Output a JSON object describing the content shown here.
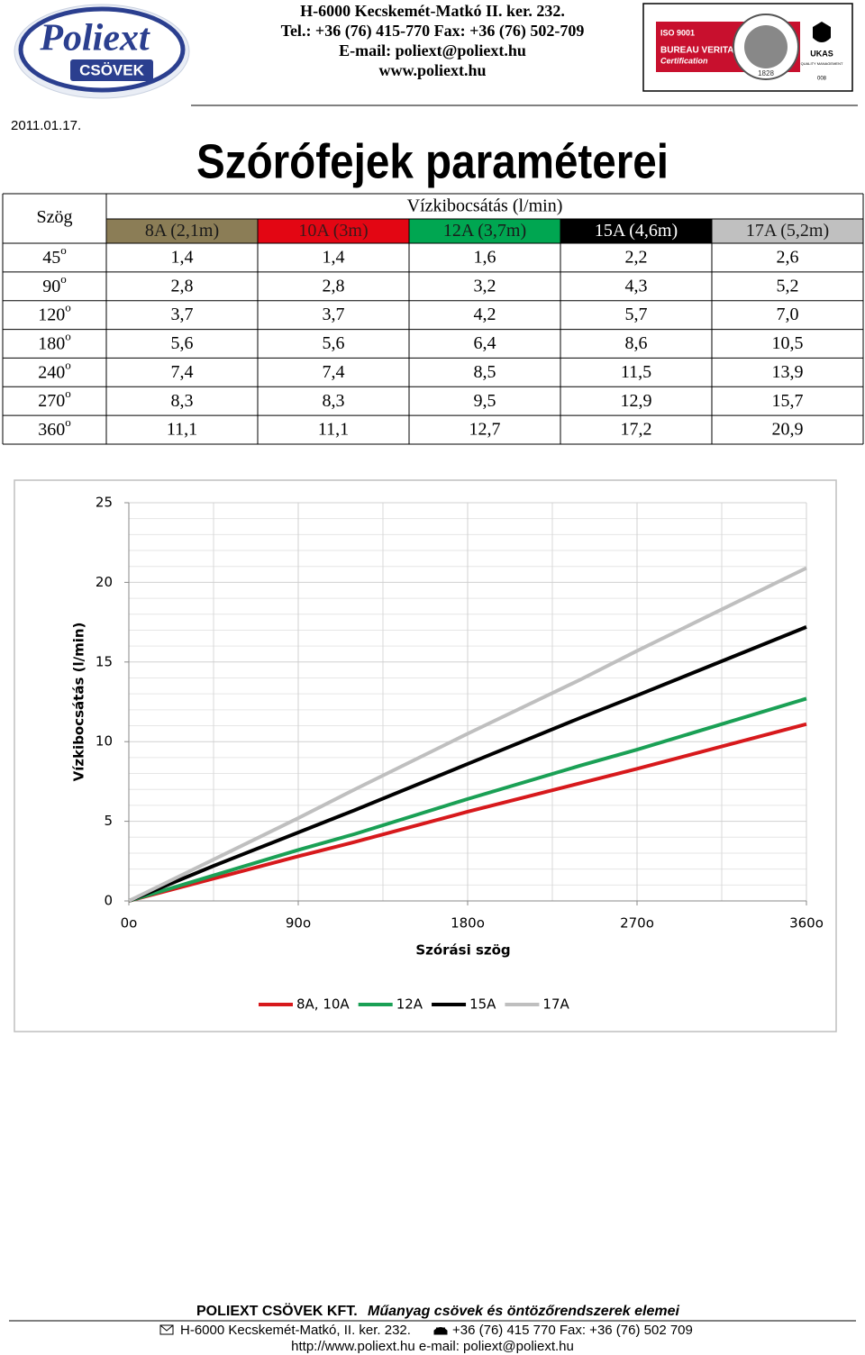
{
  "header": {
    "logo": "Poliext",
    "logo_sub": "CSÖVEK",
    "lines": [
      "H-6000 Kecskemét-Matkó II. ker. 232.",
      "Tel.: +36 (76) 415-770  Fax: +36 (76) 502-709",
      "E-mail: poliext@poliext.hu",
      "www.poliext.hu"
    ],
    "cert": {
      "iso": "ISO 9001",
      "bv": "BUREAU VERITAS",
      "certification": "Certification",
      "year": "1828",
      "ukas": "UKAS",
      "qm": "QUALITY MANAGEMENT",
      "number": "008"
    }
  },
  "date": "2011.01.17.",
  "title": "Szórófejek paraméterei",
  "table": {
    "corner": "Szög",
    "group": "Vízkibocsátás (l/min)",
    "columns": [
      {
        "label": "8A (2,1m)",
        "color": "#8b7d56",
        "text": "#1a1a1a"
      },
      {
        "label": "10A (3m)",
        "color": "#e30613",
        "text": "#3a1a1a"
      },
      {
        "label": "12A (3,7m)",
        "color": "#00a651",
        "text": "#1a1a1a"
      },
      {
        "label": "15A (4,6m)",
        "color": "#000000",
        "text": "#ffffff"
      },
      {
        "label": "17A (5,2m)",
        "color": "#c0c0c0",
        "text": "#1a1a1a"
      }
    ],
    "rows": [
      {
        "angle": "45",
        "unit": "o",
        "values": [
          "1,4",
          "1,4",
          "1,6",
          "2,2",
          "2,6"
        ]
      },
      {
        "angle": "90",
        "unit": "o",
        "values": [
          "2,8",
          "2,8",
          "3,2",
          "4,3",
          "5,2"
        ]
      },
      {
        "angle": "120",
        "unit": "o",
        "values": [
          "3,7",
          "3,7",
          "4,2",
          "5,7",
          "7,0"
        ]
      },
      {
        "angle": "180",
        "unit": "o",
        "values": [
          "5,6",
          "5,6",
          "6,4",
          "8,6",
          "10,5"
        ]
      },
      {
        "angle": "240",
        "unit": "o",
        "values": [
          "7,4",
          "7,4",
          "8,5",
          "11,5",
          "13,9"
        ]
      },
      {
        "angle": "270",
        "unit": "o",
        "values": [
          "8,3",
          "8,3",
          "9,5",
          "12,9",
          "15,7"
        ]
      },
      {
        "angle": "360",
        "unit": "o",
        "values": [
          "11,1",
          "11,1",
          "12,7",
          "17,2",
          "20,9"
        ]
      }
    ]
  },
  "chart_data": {
    "type": "line",
    "x_label": "Szórási szög",
    "y_label": "Vízkibocsátás (l/min)",
    "x": [
      0,
      45,
      90,
      120,
      180,
      240,
      270,
      360
    ],
    "series": [
      {
        "name": "8A, 10A",
        "color": "#d7191c",
        "values": [
          0,
          1.4,
          2.8,
          3.7,
          5.6,
          7.4,
          8.3,
          11.1
        ]
      },
      {
        "name": "12A",
        "color": "#1aa055",
        "values": [
          0,
          1.6,
          3.2,
          4.2,
          6.4,
          8.5,
          9.5,
          12.7
        ]
      },
      {
        "name": "15A",
        "color": "#000000",
        "values": [
          0,
          2.2,
          4.3,
          5.7,
          8.6,
          11.5,
          12.9,
          17.2
        ]
      },
      {
        "name": "17A",
        "color": "#bfbfbf",
        "values": [
          0,
          2.6,
          5.2,
          7.0,
          10.5,
          13.9,
          15.7,
          20.9
        ]
      }
    ],
    "xlim": [
      0,
      360
    ],
    "xticks": [
      {
        "value": 0,
        "label": "0o"
      },
      {
        "value": 90,
        "label": "90o"
      },
      {
        "value": 180,
        "label": "180o"
      },
      {
        "value": 270,
        "label": "270o"
      },
      {
        "value": 360,
        "label": "360o"
      }
    ],
    "ylim": [
      0,
      25
    ],
    "yticks": [
      0,
      5,
      10,
      15,
      20,
      25
    ],
    "grid": true,
    "minor_grid": {
      "x": 2,
      "y": 5
    },
    "legend": "bottom"
  },
  "footer": {
    "company": "POLIEXT CSÖVEK KFT.",
    "tagline": "Műanyag csövek és öntözőrendszerek elemei",
    "address": "H-6000 Kecskemét-Matkó, II. ker. 232.",
    "phone": "+36 (76) 415 770   Fax: +36 (76) 502 709",
    "web": "http://www.poliext.hu   e-mail: poliext@poliext.hu"
  }
}
